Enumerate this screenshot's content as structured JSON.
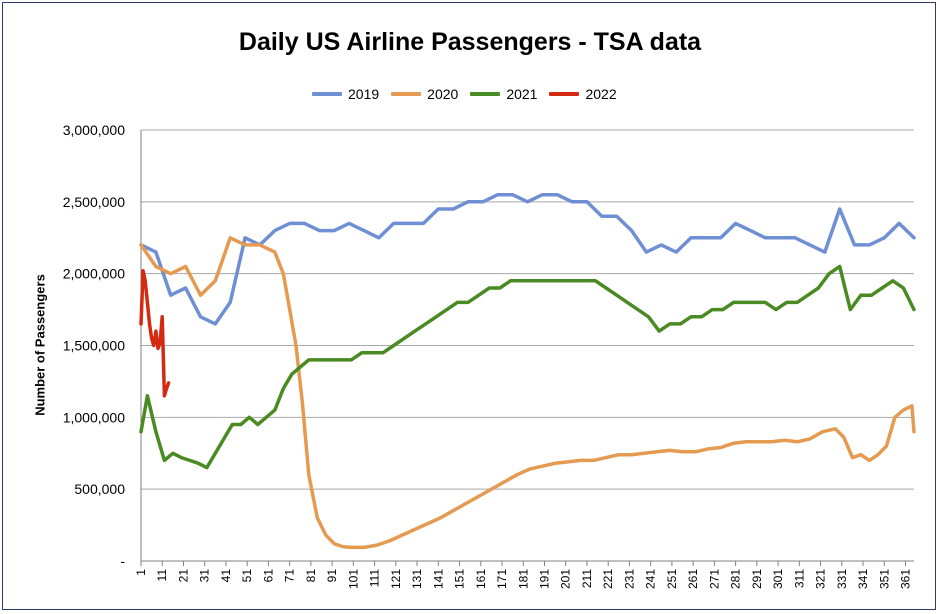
{
  "chart_data": {
    "type": "line",
    "title": "Daily US Airline Passengers - TSA data",
    "xlabel": "",
    "ylabel": "Number of Passengers",
    "ylim": [
      0,
      3000000
    ],
    "yticks": [
      0,
      500000,
      1000000,
      1500000,
      2000000,
      2500000,
      3000000
    ],
    "ytick_labels": [
      "-",
      "500,000",
      "1,000,000",
      "1,500,000",
      "2,000,000",
      "2,500,000",
      "3,000,000"
    ],
    "xlim": [
      1,
      365
    ],
    "xticks": [
      1,
      11,
      21,
      31,
      41,
      51,
      61,
      71,
      81,
      91,
      101,
      111,
      121,
      131,
      141,
      151,
      161,
      171,
      181,
      191,
      201,
      211,
      221,
      231,
      241,
      251,
      261,
      271,
      281,
      291,
      301,
      311,
      321,
      331,
      341,
      351,
      361
    ],
    "grid": "horizontal",
    "legend_position": "top-center",
    "series": [
      {
        "name": "2019",
        "color": "#6e8fd4",
        "approximate": true,
        "points": [
          [
            1,
            2200000
          ],
          [
            8,
            2150000
          ],
          [
            15,
            1850000
          ],
          [
            22,
            1900000
          ],
          [
            29,
            1700000
          ],
          [
            36,
            1650000
          ],
          [
            43,
            1800000
          ],
          [
            50,
            2250000
          ],
          [
            57,
            2200000
          ],
          [
            64,
            2300000
          ],
          [
            71,
            2350000
          ],
          [
            78,
            2350000
          ],
          [
            85,
            2300000
          ],
          [
            92,
            2300000
          ],
          [
            99,
            2350000
          ],
          [
            106,
            2300000
          ],
          [
            113,
            2250000
          ],
          [
            120,
            2350000
          ],
          [
            127,
            2350000
          ],
          [
            134,
            2350000
          ],
          [
            141,
            2450000
          ],
          [
            148,
            2450000
          ],
          [
            155,
            2500000
          ],
          [
            162,
            2500000
          ],
          [
            169,
            2550000
          ],
          [
            176,
            2550000
          ],
          [
            183,
            2500000
          ],
          [
            190,
            2550000
          ],
          [
            197,
            2550000
          ],
          [
            204,
            2500000
          ],
          [
            211,
            2500000
          ],
          [
            218,
            2400000
          ],
          [
            225,
            2400000
          ],
          [
            232,
            2300000
          ],
          [
            239,
            2150000
          ],
          [
            246,
            2200000
          ],
          [
            253,
            2150000
          ],
          [
            260,
            2250000
          ],
          [
            267,
            2250000
          ],
          [
            274,
            2250000
          ],
          [
            281,
            2350000
          ],
          [
            288,
            2300000
          ],
          [
            295,
            2250000
          ],
          [
            302,
            2250000
          ],
          [
            309,
            2250000
          ],
          [
            316,
            2200000
          ],
          [
            323,
            2150000
          ],
          [
            330,
            2450000
          ],
          [
            337,
            2200000
          ],
          [
            344,
            2200000
          ],
          [
            351,
            2250000
          ],
          [
            358,
            2350000
          ],
          [
            365,
            2250000
          ]
        ]
      },
      {
        "name": "2020",
        "color": "#e59a52",
        "approximate": true,
        "points": [
          [
            1,
            2200000
          ],
          [
            8,
            2050000
          ],
          [
            15,
            2000000
          ],
          [
            22,
            2050000
          ],
          [
            29,
            1850000
          ],
          [
            36,
            1950000
          ],
          [
            43,
            2250000
          ],
          [
            50,
            2200000
          ],
          [
            57,
            2200000
          ],
          [
            64,
            2150000
          ],
          [
            68,
            2000000
          ],
          [
            71,
            1750000
          ],
          [
            74,
            1500000
          ],
          [
            77,
            1100000
          ],
          [
            80,
            600000
          ],
          [
            84,
            300000
          ],
          [
            88,
            180000
          ],
          [
            92,
            120000
          ],
          [
            96,
            100000
          ],
          [
            100,
            95000
          ],
          [
            106,
            95000
          ],
          [
            112,
            110000
          ],
          [
            118,
            140000
          ],
          [
            124,
            180000
          ],
          [
            130,
            220000
          ],
          [
            136,
            260000
          ],
          [
            142,
            300000
          ],
          [
            148,
            350000
          ],
          [
            154,
            400000
          ],
          [
            160,
            450000
          ],
          [
            166,
            500000
          ],
          [
            172,
            550000
          ],
          [
            178,
            600000
          ],
          [
            184,
            640000
          ],
          [
            190,
            660000
          ],
          [
            196,
            680000
          ],
          [
            202,
            690000
          ],
          [
            208,
            700000
          ],
          [
            214,
            700000
          ],
          [
            220,
            720000
          ],
          [
            226,
            740000
          ],
          [
            232,
            740000
          ],
          [
            238,
            750000
          ],
          [
            244,
            760000
          ],
          [
            250,
            770000
          ],
          [
            256,
            760000
          ],
          [
            262,
            760000
          ],
          [
            268,
            780000
          ],
          [
            274,
            790000
          ],
          [
            280,
            820000
          ],
          [
            286,
            830000
          ],
          [
            292,
            830000
          ],
          [
            298,
            830000
          ],
          [
            304,
            840000
          ],
          [
            310,
            830000
          ],
          [
            316,
            850000
          ],
          [
            322,
            900000
          ],
          [
            328,
            920000
          ],
          [
            332,
            860000
          ],
          [
            336,
            720000
          ],
          [
            340,
            740000
          ],
          [
            344,
            700000
          ],
          [
            348,
            740000
          ],
          [
            352,
            800000
          ],
          [
            356,
            1000000
          ],
          [
            360,
            1050000
          ],
          [
            364,
            1080000
          ],
          [
            365,
            900000
          ]
        ]
      },
      {
        "name": "2021",
        "color": "#4a8a22",
        "approximate": true,
        "points": [
          [
            1,
            900000
          ],
          [
            4,
            1150000
          ],
          [
            8,
            900000
          ],
          [
            12,
            700000
          ],
          [
            16,
            750000
          ],
          [
            20,
            720000
          ],
          [
            24,
            700000
          ],
          [
            28,
            680000
          ],
          [
            32,
            650000
          ],
          [
            36,
            750000
          ],
          [
            40,
            850000
          ],
          [
            44,
            950000
          ],
          [
            48,
            950000
          ],
          [
            52,
            1000000
          ],
          [
            56,
            950000
          ],
          [
            60,
            1000000
          ],
          [
            64,
            1050000
          ],
          [
            68,
            1200000
          ],
          [
            72,
            1300000
          ],
          [
            76,
            1350000
          ],
          [
            80,
            1400000
          ],
          [
            85,
            1400000
          ],
          [
            90,
            1400000
          ],
          [
            95,
            1400000
          ],
          [
            100,
            1400000
          ],
          [
            105,
            1450000
          ],
          [
            110,
            1450000
          ],
          [
            115,
            1450000
          ],
          [
            120,
            1500000
          ],
          [
            125,
            1550000
          ],
          [
            130,
            1600000
          ],
          [
            135,
            1650000
          ],
          [
            140,
            1700000
          ],
          [
            145,
            1750000
          ],
          [
            150,
            1800000
          ],
          [
            155,
            1800000
          ],
          [
            160,
            1850000
          ],
          [
            165,
            1900000
          ],
          [
            170,
            1900000
          ],
          [
            175,
            1950000
          ],
          [
            180,
            1950000
          ],
          [
            185,
            1950000
          ],
          [
            190,
            1950000
          ],
          [
            195,
            1950000
          ],
          [
            200,
            1950000
          ],
          [
            205,
            1950000
          ],
          [
            210,
            1950000
          ],
          [
            215,
            1950000
          ],
          [
            220,
            1900000
          ],
          [
            225,
            1850000
          ],
          [
            230,
            1800000
          ],
          [
            235,
            1750000
          ],
          [
            240,
            1700000
          ],
          [
            245,
            1600000
          ],
          [
            250,
            1650000
          ],
          [
            255,
            1650000
          ],
          [
            260,
            1700000
          ],
          [
            265,
            1700000
          ],
          [
            270,
            1750000
          ],
          [
            275,
            1750000
          ],
          [
            280,
            1800000
          ],
          [
            285,
            1800000
          ],
          [
            290,
            1800000
          ],
          [
            295,
            1800000
          ],
          [
            300,
            1750000
          ],
          [
            305,
            1800000
          ],
          [
            310,
            1800000
          ],
          [
            315,
            1850000
          ],
          [
            320,
            1900000
          ],
          [
            325,
            2000000
          ],
          [
            330,
            2050000
          ],
          [
            335,
            1750000
          ],
          [
            340,
            1850000
          ],
          [
            345,
            1850000
          ],
          [
            350,
            1900000
          ],
          [
            355,
            1950000
          ],
          [
            360,
            1900000
          ],
          [
            365,
            1750000
          ]
        ]
      },
      {
        "name": "2022",
        "color": "#d42a12",
        "approximate": true,
        "points": [
          [
            1,
            1650000
          ],
          [
            2,
            2020000
          ],
          [
            3,
            1950000
          ],
          [
            4,
            1800000
          ],
          [
            5,
            1650000
          ],
          [
            6,
            1550000
          ],
          [
            7,
            1500000
          ],
          [
            8,
            1600000
          ],
          [
            9,
            1480000
          ],
          [
            10,
            1520000
          ],
          [
            11,
            1700000
          ],
          [
            12,
            1150000
          ],
          [
            13,
            1200000
          ],
          [
            14,
            1240000
          ]
        ]
      }
    ]
  }
}
